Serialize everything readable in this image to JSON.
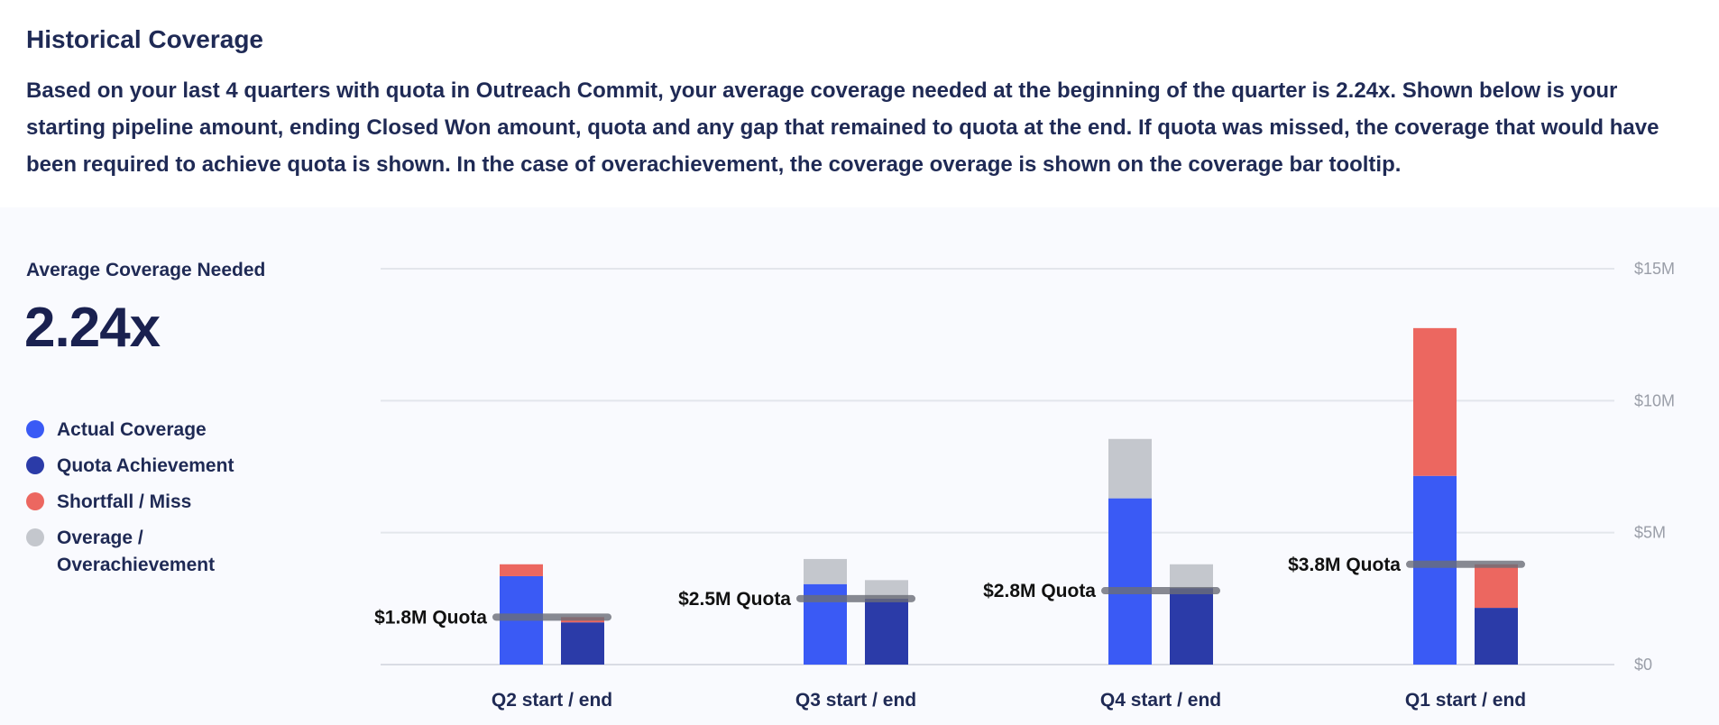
{
  "header": {
    "title": "Historical Coverage",
    "description": "Based on your last 4 quarters with quota in Outreach Commit, your average coverage needed at the beginning of the quarter is 2.24x. Shown below is your starting pipeline amount, ending Closed Won amount, quota and any gap that remained to quota at the end. If quota was missed, the coverage that would have been required to achieve quota is shown. In the case of overachievement, the coverage overage is shown on the coverage bar tooltip."
  },
  "summary": {
    "label": "Average Coverage Needed",
    "value": "2.24x"
  },
  "legend": [
    {
      "label": "Actual Coverage",
      "color": "#3a5af5"
    },
    {
      "label": "Quota Achievement",
      "color": "#2b3ba8"
    },
    {
      "label": "Shortfall / Miss",
      "color": "#ec6760"
    },
    {
      "label": "Overage / Overachievement",
      "color": "#c4c7cd"
    }
  ],
  "chart_data": {
    "type": "bar",
    "stacked": true,
    "y_axis_position": "right",
    "ylim": [
      0,
      15
    ],
    "y_unit": "$M",
    "y_ticks": [
      {
        "value": 0,
        "label": "$0"
      },
      {
        "value": 5,
        "label": "$5M"
      },
      {
        "value": 10,
        "label": "$10M"
      },
      {
        "value": 15,
        "label": "$15M"
      }
    ],
    "grid": true,
    "colors": {
      "actual": "#3a5af5",
      "achievement": "#2b3ba8",
      "shortfall": "#ec6760",
      "overage": "#c4c7cd",
      "quota_line": "#6b6e78"
    },
    "groups": [
      {
        "category": "Q2 start / end",
        "quota": 1.8,
        "quota_label": "$1.8M Quota",
        "start_bar": {
          "actual": 3.35,
          "shortfall": 0.45,
          "overage": 0
        },
        "end_bar": {
          "achievement": 1.6,
          "shortfall": 0.2,
          "overage": 0
        }
      },
      {
        "category": "Q3 start / end",
        "quota": 2.5,
        "quota_label": "$2.5M Quota",
        "start_bar": {
          "actual": 3.05,
          "shortfall": 0,
          "overage": 0.95
        },
        "end_bar": {
          "achievement": 2.5,
          "shortfall": 0,
          "overage": 0.7
        }
      },
      {
        "category": "Q4 start / end",
        "quota": 2.8,
        "quota_label": "$2.8M Quota",
        "start_bar": {
          "actual": 6.3,
          "shortfall": 0,
          "overage": 2.25
        },
        "end_bar": {
          "achievement": 2.9,
          "shortfall": 0,
          "overage": 0.9
        }
      },
      {
        "category": "Q1 start / end",
        "quota": 3.8,
        "quota_label": "$3.8M Quota",
        "start_bar": {
          "actual": 7.15,
          "shortfall": 5.6,
          "overage": 0
        },
        "end_bar": {
          "achievement": 2.15,
          "shortfall": 1.65,
          "overage": 0
        }
      }
    ]
  }
}
